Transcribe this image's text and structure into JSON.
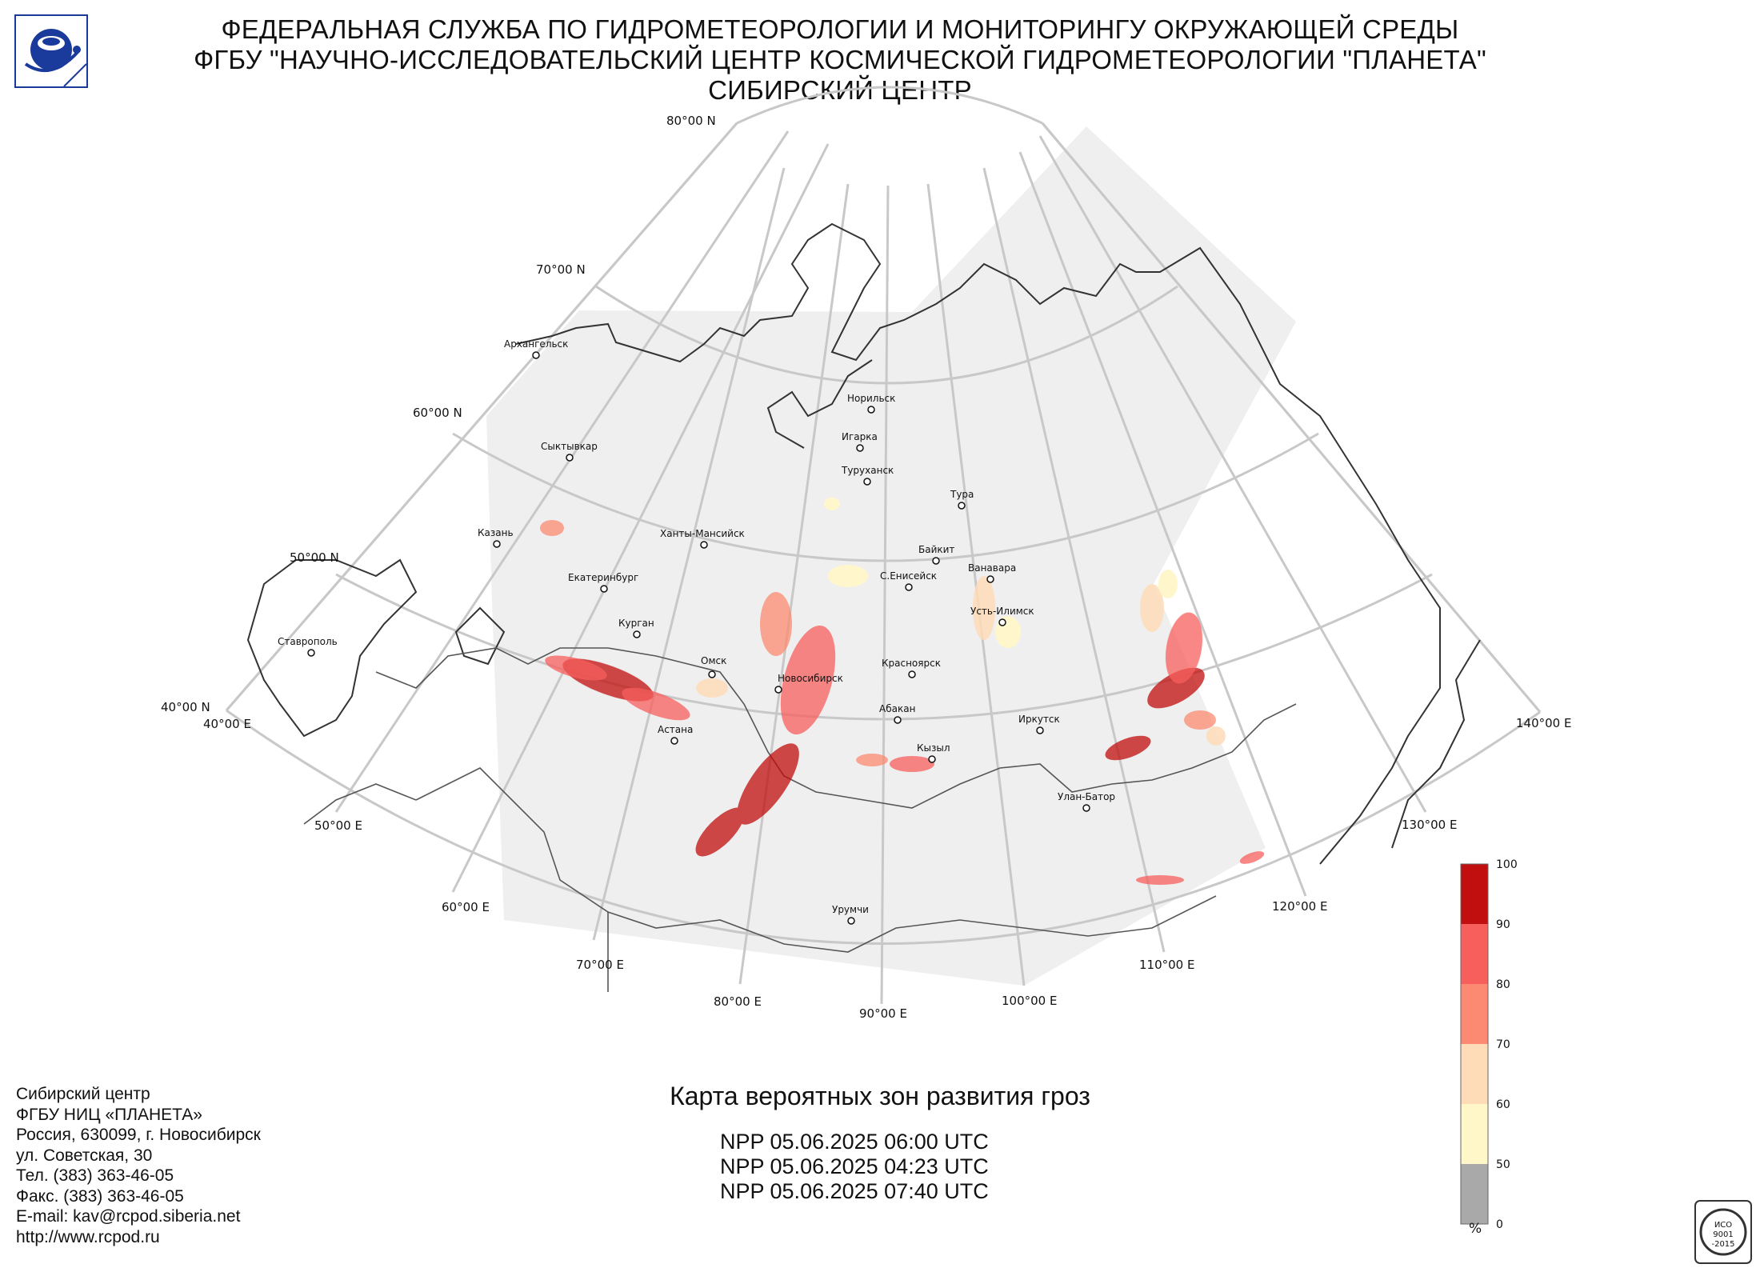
{
  "header": {
    "line1": "ФЕДЕРАЛЬНАЯ СЛУЖБА ПО ГИДРОМЕТЕОРОЛОГИИ И МОНИТОРИНГУ ОКРУЖАЮЩЕЙ СРЕДЫ",
    "line2": "ФГБУ \"НАУЧНО-ИССЛЕДОВАТЕЛЬСКИЙ ЦЕНТР КОСМИЧЕСКОЙ ГИДРОМЕТЕОРОЛОГИИ \"ПЛАНЕТА\"",
    "line3": "СИБИРСКИЙ ЦЕНТР"
  },
  "logo": {
    "icon": "planeta-logo-icon",
    "colors": {
      "primary": "#1a3a9c",
      "accent": "#3a6fd8"
    }
  },
  "map": {
    "latitude_labels": [
      "80°00 N",
      "70°00 N",
      "60°00 N",
      "50°00 N",
      "40°00 N"
    ],
    "longitude_labels": [
      "40°00 E",
      "50°00 E",
      "60°00 E",
      "70°00 E",
      "80°00 E",
      "90°00 E",
      "100°00 E",
      "110°00 E",
      "120°00 E",
      "130°00 E",
      "140°00 E"
    ],
    "cities": [
      "Архангельск",
      "Сыктывкар",
      "Казань",
      "Ханты-Мансийск",
      "Екатеринбург",
      "Курган",
      "Ставрополь",
      "Омск",
      "Новосибирск",
      "Астана",
      "Норильск",
      "Игарка",
      "Туруханск",
      "Тура",
      "Байкит",
      "Ванавара",
      "С.Енисейск",
      "Усть-Илимск",
      "Красноярск",
      "Абакан",
      "Кызыл",
      "Иркутск",
      "Улан-Батор",
      "Урумчи"
    ],
    "colors": {
      "coverage": "#efefef",
      "grid": "#c8c8c8",
      "coast": "#333333",
      "border": "#555555"
    }
  },
  "colorbar": {
    "ticks": [
      "0",
      "50",
      "60",
      "70",
      "80",
      "90",
      "100"
    ],
    "unit": "%",
    "colors": [
      "#a9a9a9",
      "#fff7c8",
      "#fedcb8",
      "#fc8a72",
      "#f75f5c",
      "#c10e0e"
    ]
  },
  "title": "Карта вероятных зон развития гроз",
  "passes": [
    "NPP 05.06.2025  06:00 UTC",
    "NPP 05.06.2025  04:23 UTC",
    "NPP 05.06.2025  07:40 UTC"
  ],
  "contact": [
    "Сибирский центр",
    "ФГБУ НИЦ «ПЛАНЕТА»",
    "Россия, 630099, г. Новосибирск",
    "ул. Советская, 30",
    "Тел. (383) 363-46-05",
    "Факс. (383) 363-46-05",
    "E-mail: kav@rcpod.siberia.net",
    "http://www.rcpod.ru"
  ],
  "iso_badge": {
    "icon": "iso-certificate-icon",
    "lines": [
      "ИСО",
      "9001",
      "-2015"
    ]
  }
}
